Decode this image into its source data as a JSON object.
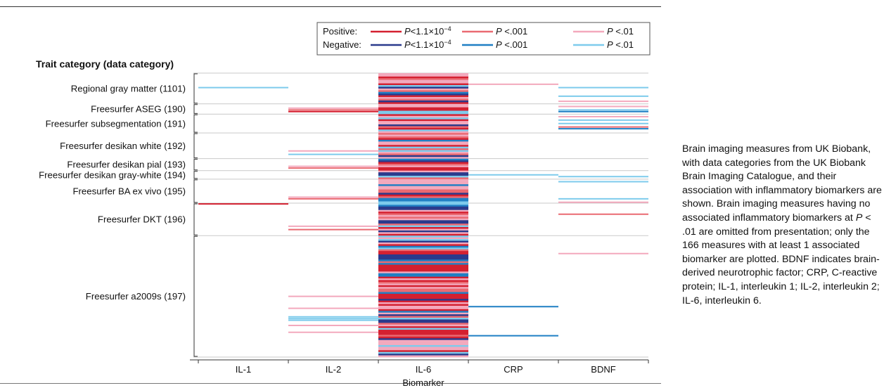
{
  "chart_data": {
    "type": "heatmap",
    "ylabel": "Trait category (data category)",
    "xlabel": "Biomarker",
    "categories": [
      "IL-1",
      "IL-2",
      "IL-6",
      "CRP",
      "BDNF"
    ],
    "rows": 166,
    "legend": {
      "placement": "top-right",
      "rows": [
        {
          "label": "Positive:",
          "entries": [
            {
              "p_prefix": "P",
              "p_suffix": "<1.1×10",
              "exp": "−4",
              "color": "#d42030"
            },
            {
              "p_prefix": "P",
              "p_suffix": " <.001",
              "exp": "",
              "color": "#ea6a72"
            },
            {
              "p_prefix": "P",
              "p_suffix": " <.01",
              "exp": "",
              "color": "#f3a9bd"
            }
          ]
        },
        {
          "label": "Negative:",
          "entries": [
            {
              "p_prefix": "P",
              "p_suffix": "<1.1×10",
              "exp": "−4",
              "color": "#2a3a8c"
            },
            {
              "p_prefix": "P",
              "p_suffix": " <.001",
              "exp": "",
              "color": "#1f7fc4"
            },
            {
              "p_prefix": "P",
              "p_suffix": " <.01",
              "exp": "",
              "color": "#7ecbec"
            }
          ]
        }
      ]
    },
    "groups": [
      {
        "label": "Regional gray matter (1101)",
        "start": 0,
        "end": 18
      },
      {
        "label": "Freesurfer ASEG (190)",
        "start": 18,
        "end": 24
      },
      {
        "label": "Freesurfer subsegmentation (191)",
        "start": 24,
        "end": 35
      },
      {
        "label": "Freesurfer desikan white (192)",
        "start": 35,
        "end": 50
      },
      {
        "label": "Freesurfer desikan pial (193)",
        "start": 50,
        "end": 57
      },
      {
        "label": "Freesurfer desikan gray-white (194)",
        "start": 57,
        "end": 62
      },
      {
        "label": "Freesurfer BA ex vivo (195)",
        "start": 62,
        "end": 76
      },
      {
        "label": "Freesurfer DKT (196)",
        "start": 76,
        "end": 95
      },
      {
        "label": "Freesurfer a2009s (197)",
        "start": 95,
        "end": 166
      }
    ],
    "sparse_cells": [
      {
        "col": 0,
        "row": 8,
        "sig": "neg3"
      },
      {
        "col": 0,
        "row": 76,
        "sig": "pos1"
      },
      {
        "col": 1,
        "row": 20,
        "sig": "pos3"
      },
      {
        "col": 1,
        "row": 21,
        "sig": "pos2"
      },
      {
        "col": 1,
        "row": 22,
        "sig": "pos1"
      },
      {
        "col": 1,
        "row": 45,
        "sig": "pos3"
      },
      {
        "col": 1,
        "row": 47,
        "sig": "neg3"
      },
      {
        "col": 1,
        "row": 54,
        "sig": "pos3"
      },
      {
        "col": 1,
        "row": 55,
        "sig": "pos2"
      },
      {
        "col": 1,
        "row": 72,
        "sig": "pos3"
      },
      {
        "col": 1,
        "row": 73,
        "sig": "pos2"
      },
      {
        "col": 1,
        "row": 89,
        "sig": "pos3"
      },
      {
        "col": 1,
        "row": 91,
        "sig": "pos2"
      },
      {
        "col": 1,
        "row": 130,
        "sig": "pos3"
      },
      {
        "col": 1,
        "row": 137,
        "sig": "pos3"
      },
      {
        "col": 1,
        "row": 142,
        "sig": "neg3"
      },
      {
        "col": 1,
        "row": 143,
        "sig": "neg3"
      },
      {
        "col": 1,
        "row": 144,
        "sig": "neg3"
      },
      {
        "col": 1,
        "row": 147,
        "sig": "pos3"
      },
      {
        "col": 1,
        "row": 151,
        "sig": "pos3"
      },
      {
        "col": 3,
        "row": 6,
        "sig": "pos3"
      },
      {
        "col": 3,
        "row": 59,
        "sig": "neg3"
      },
      {
        "col": 3,
        "row": 136,
        "sig": "neg2"
      },
      {
        "col": 3,
        "row": 153,
        "sig": "neg2"
      },
      {
        "col": 4,
        "row": 8,
        "sig": "neg3"
      },
      {
        "col": 4,
        "row": 13,
        "sig": "neg3"
      },
      {
        "col": 4,
        "row": 16,
        "sig": "pos3"
      },
      {
        "col": 4,
        "row": 19,
        "sig": "pos3"
      },
      {
        "col": 4,
        "row": 21,
        "sig": "neg3"
      },
      {
        "col": 4,
        "row": 22,
        "sig": "neg2"
      },
      {
        "col": 4,
        "row": 25,
        "sig": "pos3"
      },
      {
        "col": 4,
        "row": 27,
        "sig": "neg3"
      },
      {
        "col": 4,
        "row": 29,
        "sig": "neg3"
      },
      {
        "col": 4,
        "row": 31,
        "sig": "pos2"
      },
      {
        "col": 4,
        "row": 32,
        "sig": "neg2"
      },
      {
        "col": 4,
        "row": 60,
        "sig": "neg3"
      },
      {
        "col": 4,
        "row": 63,
        "sig": "neg3"
      },
      {
        "col": 4,
        "row": 73,
        "sig": "neg3"
      },
      {
        "col": 4,
        "row": 75,
        "sig": "pos3"
      },
      {
        "col": 4,
        "row": 82,
        "sig": "pos2"
      },
      {
        "col": 4,
        "row": 105,
        "sig": "pos3"
      }
    ]
  },
  "caption": {
    "part1": "Brain imaging measures from UK Biobank, with data categories from the UK Biobank Brain Imaging Catalogue, and their association with inflammatory biomarkers are shown. Brain imaging measures having no associated inflammatory biomarkers at ",
    "p_italic": "P",
    "part2": " < .01 are omitted from presentation; only the 166 measures with at least 1 associated biomarker are plotted. BDNF indicates brain-derived neurotrophic factor; CRP, C-reactive protein; IL-1, interleukin 1; IL-2, interleukin 2; IL-6, interleukin 6."
  }
}
